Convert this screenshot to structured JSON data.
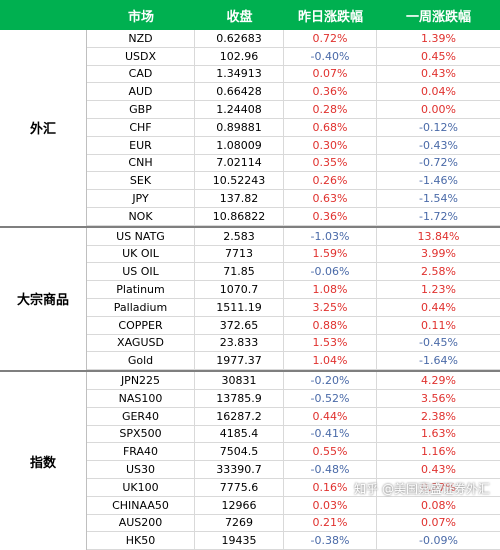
{
  "headers": [
    "",
    "市场",
    "收盘",
    "昨日涨跌幅",
    "一周涨跌幅"
  ],
  "sections": [
    {
      "name": "外汇",
      "rows": [
        {
          "m": "NZD",
          "v": "0.62683",
          "d": "0.72%",
          "w": "1.39%",
          "ds": "pos",
          "ws": "pos"
        },
        {
          "m": "USDX",
          "v": "102.96",
          "d": "-0.40%",
          "w": "0.45%",
          "ds": "neg",
          "ws": "pos"
        },
        {
          "m": "CAD",
          "v": "1.34913",
          "d": "0.07%",
          "w": "0.43%",
          "ds": "pos",
          "ws": "pos"
        },
        {
          "m": "AUD",
          "v": "0.66428",
          "d": "0.36%",
          "w": "0.04%",
          "ds": "pos",
          "ws": "pos"
        },
        {
          "m": "GBP",
          "v": "1.24408",
          "d": "0.28%",
          "w": "0.00%",
          "ds": "pos",
          "ws": "zero"
        },
        {
          "m": "CHF",
          "v": "0.89881",
          "d": "0.68%",
          "w": "-0.12%",
          "ds": "pos",
          "ws": "neg"
        },
        {
          "m": "EUR",
          "v": "1.08009",
          "d": "0.30%",
          "w": "-0.43%",
          "ds": "pos",
          "ws": "neg"
        },
        {
          "m": "CNH",
          "v": "7.02114",
          "d": "0.35%",
          "w": "-0.72%",
          "ds": "pos",
          "ws": "neg"
        },
        {
          "m": "SEK",
          "v": "10.52243",
          "d": "0.26%",
          "w": "-1.46%",
          "ds": "pos",
          "ws": "neg"
        },
        {
          "m": "JPY",
          "v": "137.82",
          "d": "0.63%",
          "w": "-1.54%",
          "ds": "pos",
          "ws": "neg"
        },
        {
          "m": "NOK",
          "v": "10.86822",
          "d": "0.36%",
          "w": "-1.72%",
          "ds": "pos",
          "ws": "neg"
        }
      ]
    },
    {
      "name": "大宗商品",
      "rows": [
        {
          "m": "US NATG",
          "v": "2.583",
          "d": "-1.03%",
          "w": "13.84%",
          "ds": "neg",
          "ws": "pos"
        },
        {
          "m": "UK OIL",
          "v": "7713",
          "d": "1.59%",
          "w": "3.99%",
          "ds": "pos",
          "ws": "pos"
        },
        {
          "m": "US OIL",
          "v": "71.85",
          "d": "-0.06%",
          "w": "2.58%",
          "ds": "neg",
          "ws": "pos"
        },
        {
          "m": "Platinum",
          "v": "1070.7",
          "d": "1.08%",
          "w": "1.23%",
          "ds": "pos",
          "ws": "pos"
        },
        {
          "m": "Palladium",
          "v": "1511.19",
          "d": "3.25%",
          "w": "0.44%",
          "ds": "pos",
          "ws": "pos"
        },
        {
          "m": "COPPER",
          "v": "372.65",
          "d": "0.88%",
          "w": "0.11%",
          "ds": "pos",
          "ws": "pos"
        },
        {
          "m": "XAGUSD",
          "v": "23.833",
          "d": "1.53%",
          "w": "-0.45%",
          "ds": "pos",
          "ws": "neg"
        },
        {
          "m": "Gold",
          "v": "1977.37",
          "d": "1.04%",
          "w": "-1.64%",
          "ds": "pos",
          "ws": "neg"
        }
      ]
    },
    {
      "name": "指数",
      "rows": [
        {
          "m": "JPN225",
          "v": "30831",
          "d": "-0.20%",
          "w": "4.29%",
          "ds": "neg",
          "ws": "pos"
        },
        {
          "m": "NAS100",
          "v": "13785.9",
          "d": "-0.52%",
          "w": "3.56%",
          "ds": "neg",
          "ws": "pos"
        },
        {
          "m": "GER40",
          "v": "16287.2",
          "d": "0.44%",
          "w": "2.38%",
          "ds": "pos",
          "ws": "pos"
        },
        {
          "m": "SPX500",
          "v": "4185.4",
          "d": "-0.41%",
          "w": "1.63%",
          "ds": "neg",
          "ws": "pos"
        },
        {
          "m": "FRA40",
          "v": "7504.5",
          "d": "0.55%",
          "w": "1.16%",
          "ds": "pos",
          "ws": "pos"
        },
        {
          "m": "US30",
          "v": "33390.7",
          "d": "-0.48%",
          "w": "0.43%",
          "ds": "neg",
          "ws": "pos"
        },
        {
          "m": "UK100",
          "v": "7775.6",
          "d": "0.16%",
          "w": "0.27%",
          "ds": "pos",
          "ws": "pos"
        },
        {
          "m": "CHINAA50",
          "v": "12966",
          "d": "0.03%",
          "w": "0.08%",
          "ds": "pos",
          "ws": "pos"
        },
        {
          "m": "AUS200",
          "v": "7269",
          "d": "0.21%",
          "w": "0.07%",
          "ds": "pos",
          "ws": "pos"
        },
        {
          "m": "HK50",
          "v": "19435",
          "d": "-0.38%",
          "w": "-0.09%",
          "ds": "neg",
          "ws": "neg"
        }
      ]
    }
  ],
  "watermark": "知乎 @美国嘉盛证券外汇",
  "colors": {
    "header": "#00b050",
    "positive": "#e0312e",
    "negative": "#4a6aa8"
  }
}
